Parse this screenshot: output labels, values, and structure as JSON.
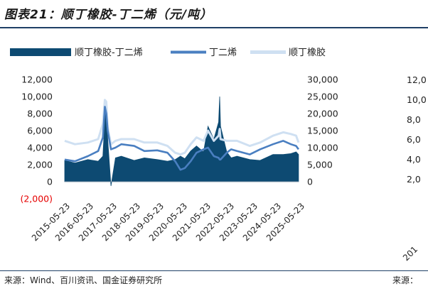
{
  "figure": {
    "title": "图表21：顺丁橡胶-丁二烯（元/吨）",
    "source": "来源：Wind、百川资讯、国金证券研究所",
    "source_right": "来源："
  },
  "colors": {
    "spread": "#0d4a72",
    "butadiene": "#4a7fc1",
    "rubber": "#cfe0f2",
    "negative_tick": "#e60000",
    "rule": "#1f3f66"
  },
  "chart_data": [
    {
      "type": "area",
      "title": "",
      "legend_position": "top",
      "legend": [
        "顺丁橡胶-丁二烯",
        "丁二烯",
        "顺丁橡胶"
      ],
      "x_ticks": [
        "2015-05-23",
        "2016-05-23",
        "2017-05-23",
        "2018-05-23",
        "2019-05-23",
        "2020-05-23",
        "2021-05-23",
        "2022-05-23",
        "2023-05-23",
        "2024-05-23",
        "2025-05-23"
      ],
      "x_range": [
        "2015-05-23",
        "2025-07-01"
      ],
      "left_axis": {
        "ylim": [
          -2000,
          12000
        ],
        "ticks": [
          "(2,000)",
          "0",
          "2,000",
          "4,000",
          "6,000",
          "8,000",
          "10,000",
          "12,000"
        ]
      },
      "right_axis": {
        "ylim": [
          0,
          30000
        ],
        "ticks": [
          "0",
          "5,000",
          "10,000",
          "15,000",
          "20,000",
          "25,000",
          "30,000"
        ]
      },
      "grid": false,
      "series": [
        {
          "name": "顺丁橡胶-丁二烯",
          "type": "area",
          "axis": "left",
          "x": [
            "2015-05-23",
            "2015-11-01",
            "2016-05-23",
            "2016-11-01",
            "2017-01-15",
            "2017-02-15",
            "2017-03-10",
            "2017-04-01",
            "2017-05-23",
            "2017-08-01",
            "2017-11-01",
            "2018-05-23",
            "2018-11-01",
            "2019-05-23",
            "2019-11-01",
            "2020-03-01",
            "2020-05-23",
            "2020-08-01",
            "2020-11-01",
            "2021-02-01",
            "2021-05-23",
            "2021-08-01",
            "2021-11-01",
            "2022-01-15",
            "2022-02-01",
            "2022-02-15",
            "2022-05-23",
            "2022-08-01",
            "2022-11-01",
            "2023-05-23",
            "2023-11-01",
            "2024-05-23",
            "2024-11-01",
            "2025-03-01",
            "2025-05-23",
            "2025-06-30"
          ],
          "y": [
            2500,
            2200,
            2600,
            2400,
            3000,
            7500,
            9500,
            5000,
            -500,
            2800,
            3000,
            2500,
            2800,
            2600,
            2400,
            2600,
            3000,
            2700,
            3600,
            4200,
            3500,
            6500,
            5000,
            7000,
            10000,
            6500,
            3500,
            2800,
            3000,
            2600,
            2500,
            3200,
            3200,
            3300,
            3500,
            3200
          ]
        },
        {
          "name": "丁二烯",
          "type": "line",
          "axis": "right",
          "x": [
            "2015-05-23",
            "2015-11-01",
            "2016-05-23",
            "2016-11-01",
            "2017-01-15",
            "2017-02-15",
            "2017-03-10",
            "2017-04-01",
            "2017-05-23",
            "2017-08-01",
            "2017-11-01",
            "2018-05-23",
            "2018-11-01",
            "2019-05-23",
            "2019-11-01",
            "2020-03-01",
            "2020-05-23",
            "2020-08-01",
            "2020-11-01",
            "2021-02-01",
            "2021-05-23",
            "2021-08-01",
            "2021-11-01",
            "2022-01-15",
            "2022-02-01",
            "2022-02-15",
            "2022-05-23",
            "2022-08-01",
            "2022-11-01",
            "2023-05-23",
            "2023-11-01",
            "2024-05-23",
            "2024-11-01",
            "2025-03-01",
            "2025-05-23",
            "2025-06-30"
          ],
          "y": [
            6500,
            6000,
            7500,
            9000,
            13000,
            22000,
            20000,
            15000,
            9500,
            10000,
            11000,
            10500,
            9000,
            9200,
            8500,
            6000,
            3500,
            4000,
            6000,
            8500,
            9500,
            10000,
            7500,
            7000,
            6500,
            6500,
            8500,
            9500,
            9000,
            8000,
            9500,
            11000,
            12000,
            11000,
            10500,
            9500
          ]
        },
        {
          "name": "顺丁橡胶",
          "type": "line",
          "axis": "right",
          "x": [
            "2015-05-23",
            "2015-11-01",
            "2016-05-23",
            "2016-11-01",
            "2017-01-15",
            "2017-02-15",
            "2017-03-10",
            "2017-04-01",
            "2017-05-23",
            "2017-08-01",
            "2017-11-01",
            "2018-05-23",
            "2018-11-01",
            "2019-05-23",
            "2019-11-01",
            "2020-03-01",
            "2020-05-23",
            "2020-08-01",
            "2020-11-01",
            "2021-02-01",
            "2021-05-23",
            "2021-08-01",
            "2021-11-01",
            "2022-01-15",
            "2022-02-01",
            "2022-02-15",
            "2022-05-23",
            "2022-08-01",
            "2022-11-01",
            "2023-05-23",
            "2023-11-01",
            "2024-05-23",
            "2024-11-01",
            "2025-03-01",
            "2025-05-23",
            "2025-06-30"
          ],
          "y": [
            12000,
            11000,
            11500,
            12500,
            17000,
            24000,
            23500,
            16000,
            11000,
            12000,
            12500,
            12500,
            11500,
            11500,
            10500,
            8500,
            8000,
            8500,
            11000,
            13000,
            12000,
            15000,
            12000,
            13500,
            15500,
            12500,
            12000,
            12000,
            12000,
            10500,
            11500,
            13500,
            14500,
            14000,
            13500,
            11500
          ]
        }
      ]
    },
    {
      "type": "line",
      "title": "",
      "partial": true,
      "left_axis": {
        "ticks": [
          "12,0",
          "10,0",
          "8,0",
          "6,0",
          "4,0",
          "2,0"
        ]
      },
      "x_ticks": [
        "201"
      ]
    }
  ]
}
